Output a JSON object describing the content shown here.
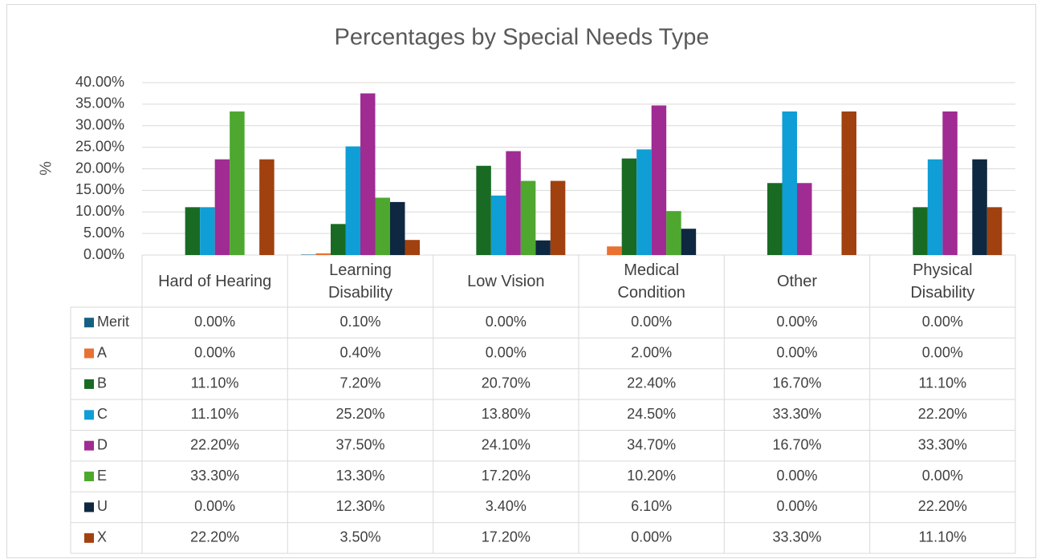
{
  "chart_data": {
    "type": "bar",
    "title": "Percentages by Special Needs Type",
    "y_label": "%",
    "categories": [
      "Hard of Hearing",
      "Learning Disability",
      "Low Vision",
      "Medical Condition",
      "Other",
      "Physical Disability"
    ],
    "series": [
      {
        "name": "Merit",
        "color": "#156082",
        "values": [
          0,
          0.1,
          0,
          0,
          0,
          0
        ],
        "value_labels": [
          "0.00%",
          "0.10%",
          "0.00%",
          "0.00%",
          "0.00%",
          "0.00%"
        ]
      },
      {
        "name": "A",
        "color": "#e97132",
        "values": [
          0,
          0.4,
          0,
          2,
          0,
          0
        ],
        "value_labels": [
          "0.00%",
          "0.40%",
          "0.00%",
          "2.00%",
          "0.00%",
          "0.00%"
        ]
      },
      {
        "name": "B",
        "color": "#196b24",
        "values": [
          11.1,
          7.2,
          20.7,
          22.4,
          16.7,
          11.1
        ],
        "value_labels": [
          "11.10%",
          "7.20%",
          "20.70%",
          "22.40%",
          "16.70%",
          "11.10%"
        ]
      },
      {
        "name": "C",
        "color": "#0f9ed5",
        "values": [
          11.1,
          25.2,
          13.8,
          24.5,
          33.3,
          22.2
        ],
        "value_labels": [
          "11.10%",
          "25.20%",
          "13.80%",
          "24.50%",
          "33.30%",
          "22.20%"
        ]
      },
      {
        "name": "D",
        "color": "#a02b93",
        "values": [
          22.2,
          37.5,
          24.1,
          34.7,
          16.7,
          33.3
        ],
        "value_labels": [
          "22.20%",
          "37.50%",
          "24.10%",
          "34.70%",
          "16.70%",
          "33.30%"
        ]
      },
      {
        "name": "E",
        "color": "#4ea72e",
        "values": [
          33.3,
          13.3,
          17.2,
          10.2,
          0,
          0
        ],
        "value_labels": [
          "33.30%",
          "13.30%",
          "17.20%",
          "10.20%",
          "0.00%",
          "0.00%"
        ]
      },
      {
        "name": "U",
        "color": "#0e2841",
        "values": [
          0,
          12.3,
          3.4,
          6.1,
          0,
          22.2
        ],
        "value_labels": [
          "0.00%",
          "12.30%",
          "3.40%",
          "6.10%",
          "0.00%",
          "22.20%"
        ]
      },
      {
        "name": "X",
        "color": "#a0410f",
        "values": [
          22.2,
          3.5,
          17.2,
          0,
          33.3,
          11.1
        ],
        "value_labels": [
          "22.20%",
          "3.50%",
          "17.20%",
          "0.00%",
          "33.30%",
          "11.10%"
        ]
      }
    ],
    "ylim": [
      0,
      40
    ],
    "yticks": [
      {
        "value": 0,
        "label": "0.00%"
      },
      {
        "value": 5,
        "label": "5.00%"
      },
      {
        "value": 10,
        "label": "10.00%"
      },
      {
        "value": 15,
        "label": "15.00%"
      },
      {
        "value": 20,
        "label": "20.00%"
      },
      {
        "value": 25,
        "label": "25.00%"
      },
      {
        "value": 30,
        "label": "30.00%"
      },
      {
        "value": 35,
        "label": "35.00%"
      },
      {
        "value": 40,
        "label": "40.00%"
      }
    ],
    "grid": true
  }
}
